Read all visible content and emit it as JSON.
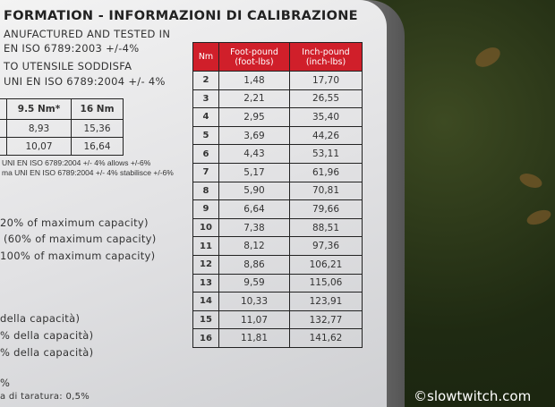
{
  "card": {
    "title": "FORMATION - INFORMAZIONI DI CALIBRAZIONE",
    "lines": [
      "ANUFACTURED AND TESTED IN",
      "EN ISO 6789:2003 +/-4%",
      "TO UTENSILE SODDISFA",
      "UNI EN ISO 6789:2004 +/- 4%"
    ],
    "notes": [
      "UNI EN ISO 6789:2004 +/- 4% allows +/-6%",
      "ma UNI EN ISO 6789:2004 +/- 4% stabilisce +/-6%"
    ],
    "capacity_en": [
      "20% of maximum capacity)",
      "(60% of maximum capacity)",
      "100% of maximum capacity)"
    ],
    "capacity_it": [
      "della capacità)",
      "% della capacità)",
      "% della capacità)"
    ],
    "footer": [
      "%",
      "a di taratura: 0,5%"
    ]
  },
  "left_table": {
    "headers": [
      "",
      "9.5 Nm*",
      "16 Nm"
    ],
    "rows": [
      [
        "",
        "8,93",
        "15,36"
      ],
      [
        "",
        "10,07",
        "16,64"
      ]
    ]
  },
  "conversion_table": {
    "headers": [
      "Nm",
      "Foot-pound (foot-lbs)",
      "Inch-pound (inch-lbs)"
    ],
    "header_color": "#d01f2a",
    "rows": [
      [
        "2",
        "1,48",
        "17,70"
      ],
      [
        "3",
        "2,21",
        "26,55"
      ],
      [
        "4",
        "2,95",
        "35,40"
      ],
      [
        "5",
        "3,69",
        "44,26"
      ],
      [
        "6",
        "4,43",
        "53,11"
      ],
      [
        "7",
        "5,17",
        "61,96"
      ],
      [
        "8",
        "5,90",
        "70,81"
      ],
      [
        "9",
        "6,64",
        "79,66"
      ],
      [
        "10",
        "7,38",
        "88,51"
      ],
      [
        "11",
        "8,12",
        "97,36"
      ],
      [
        "12",
        "8,86",
        "106,21"
      ],
      [
        "13",
        "9,59",
        "115,06"
      ],
      [
        "14",
        "10,33",
        "123,91"
      ],
      [
        "15",
        "11,07",
        "132,77"
      ],
      [
        "16",
        "11,81",
        "141,62"
      ]
    ]
  },
  "watermark": "©slowtwitch.com"
}
